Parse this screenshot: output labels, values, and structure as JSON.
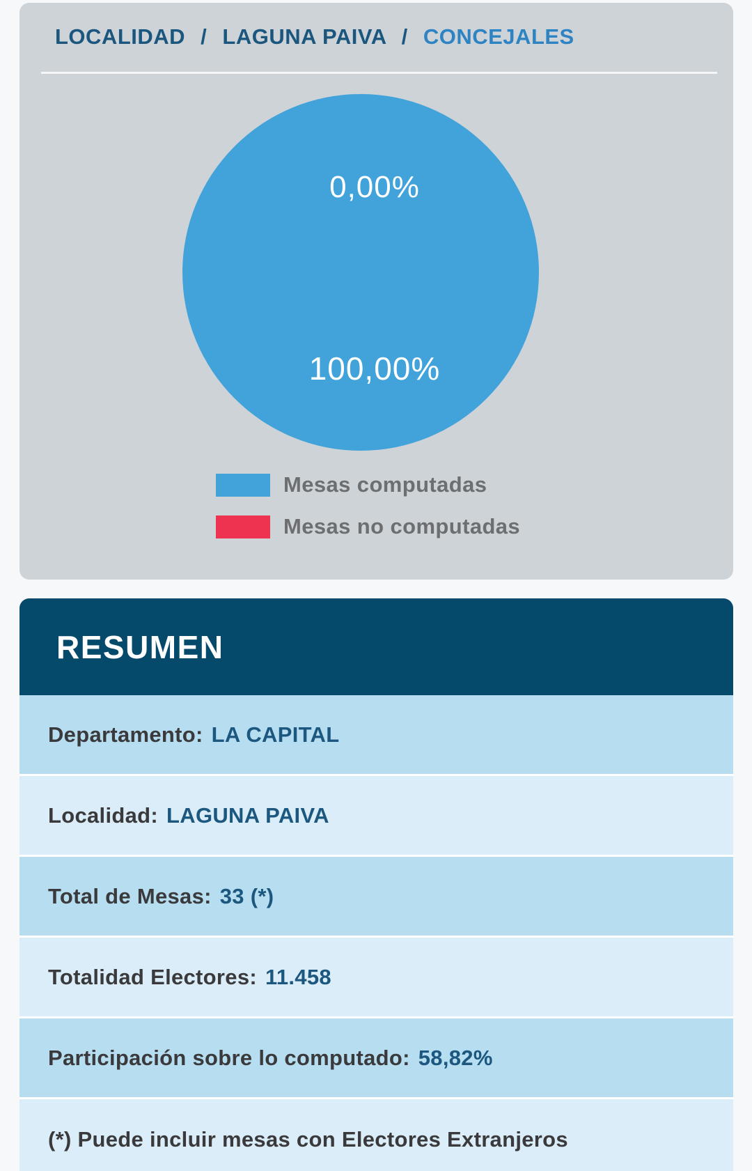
{
  "breadcrumb": {
    "separator": "/",
    "items": [
      {
        "label": "LOCALIDAD"
      },
      {
        "label": "LAGUNA PAIVA"
      },
      {
        "label": "CONCEJALES",
        "active": true
      }
    ]
  },
  "chart_data": {
    "type": "pie",
    "series": [
      {
        "name": "Mesas computadas",
        "value": 100.0,
        "label": "100,00%",
        "color": "#41a3da"
      },
      {
        "name": "Mesas no computadas",
        "value": 0.0,
        "label": "0,00%",
        "color": "#ee3350"
      }
    ],
    "legend_position": "bottom",
    "data_labels": true
  },
  "summary": {
    "title": "RESUMEN",
    "rows": [
      {
        "label": "Departamento:",
        "value": "LA CAPITAL"
      },
      {
        "label": "Localidad:",
        "value": "LAGUNA PAIVA"
      },
      {
        "label": "Total de Mesas:",
        "value": "33 (*)"
      },
      {
        "label": "Totalidad Electores:",
        "value": "11.458"
      },
      {
        "label": "Participación sobre lo computado:",
        "value": "58,82%"
      },
      {
        "label": "(*) Puede incluir mesas con Electores Extranjeros",
        "value": ""
      }
    ]
  },
  "colors": {
    "pie_blue": "#41a3da",
    "legend_red": "#ee3350",
    "header_navy": "#05496b",
    "row_dark_blue": "#b7ddf1",
    "row_light_blue": "#dbedf8",
    "value_text_blue": "#1b577e",
    "breadcrumb_blue": "#1a567d",
    "breadcrumb_active_blue": "#2e84c3"
  }
}
